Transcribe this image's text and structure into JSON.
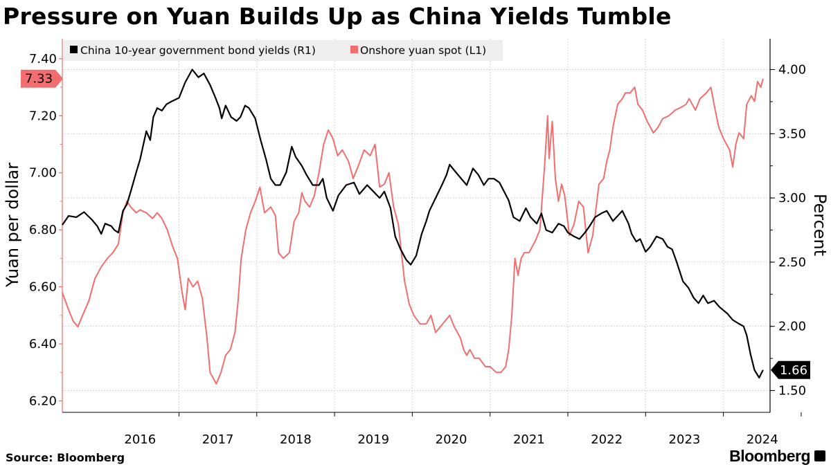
{
  "title": "Pressure on Yuan Builds Up as China Yields Tumble",
  "source": "Source:  Bloomberg",
  "brand": "Bloomberg",
  "colors": {
    "yield": "#000000",
    "yuan": "#f26d6d",
    "grid": "#c8c8c8",
    "legend_bg": "#eeeeee"
  },
  "chart_data": {
    "type": "line",
    "grid": true,
    "legend_placement": "top-left",
    "x_ticks": [
      "2016",
      "2017",
      "2018",
      "2019",
      "2020",
      "2021",
      "2022",
      "2023",
      "2024"
    ],
    "left_axis": {
      "label": "Yuan per dollar",
      "ticks": [
        "6.20",
        "6.40",
        "6.60",
        "6.80",
        "7.00",
        "7.20",
        "7.40"
      ],
      "range": [
        6.16,
        7.47
      ],
      "last_value_label": "7.33"
    },
    "right_axis": {
      "label": "Percent",
      "ticks": [
        "1.50",
        "2.00",
        "2.50",
        "3.00",
        "3.50",
        "4.00"
      ],
      "range": [
        1.33,
        4.24
      ],
      "last_value_label": "1.66"
    },
    "series": [
      {
        "name": "China 10-year government bond yields (R1)",
        "axis": "right",
        "points": [
          [
            2015.5,
            2.79
          ],
          [
            2015.58,
            2.86
          ],
          [
            2015.68,
            2.85
          ],
          [
            2015.78,
            2.89
          ],
          [
            2015.88,
            2.83
          ],
          [
            2015.95,
            2.78
          ],
          [
            2016.0,
            2.72
          ],
          [
            2016.05,
            2.8
          ],
          [
            2016.13,
            2.78
          ],
          [
            2016.17,
            2.75
          ],
          [
            2016.22,
            2.73
          ],
          [
            2016.28,
            2.9
          ],
          [
            2016.33,
            2.95
          ],
          [
            2016.38,
            3.05
          ],
          [
            2016.45,
            3.2
          ],
          [
            2016.5,
            3.3
          ],
          [
            2016.58,
            3.52
          ],
          [
            2016.63,
            3.45
          ],
          [
            2016.67,
            3.63
          ],
          [
            2016.72,
            3.7
          ],
          [
            2016.78,
            3.68
          ],
          [
            2016.84,
            3.73
          ],
          [
            2016.9,
            3.75
          ],
          [
            2017.0,
            3.78
          ],
          [
            2017.08,
            3.9
          ],
          [
            2017.17,
            4.0
          ],
          [
            2017.25,
            3.94
          ],
          [
            2017.32,
            3.97
          ],
          [
            2017.4,
            3.88
          ],
          [
            2017.47,
            3.78
          ],
          [
            2017.52,
            3.7
          ],
          [
            2017.55,
            3.62
          ],
          [
            2017.6,
            3.72
          ],
          [
            2017.67,
            3.63
          ],
          [
            2017.74,
            3.6
          ],
          [
            2017.79,
            3.63
          ],
          [
            2017.85,
            3.72
          ],
          [
            2017.9,
            3.7
          ],
          [
            2017.98,
            3.62
          ],
          [
            2018.05,
            3.45
          ],
          [
            2018.12,
            3.3
          ],
          [
            2018.18,
            3.15
          ],
          [
            2018.24,
            3.1
          ],
          [
            2018.3,
            3.1
          ],
          [
            2018.38,
            3.2
          ],
          [
            2018.45,
            3.4
          ],
          [
            2018.5,
            3.32
          ],
          [
            2018.58,
            3.25
          ],
          [
            2018.64,
            3.18
          ],
          [
            2018.72,
            3.1
          ],
          [
            2018.8,
            3.1
          ],
          [
            2018.85,
            3.15
          ],
          [
            2018.9,
            3.0
          ],
          [
            2018.98,
            2.9
          ],
          [
            2019.05,
            3.02
          ],
          [
            2019.15,
            3.1
          ],
          [
            2019.25,
            3.12
          ],
          [
            2019.32,
            3.03
          ],
          [
            2019.42,
            3.1
          ],
          [
            2019.5,
            3.05
          ],
          [
            2019.58,
            3.0
          ],
          [
            2019.64,
            3.05
          ],
          [
            2019.72,
            2.92
          ],
          [
            2019.78,
            2.7
          ],
          [
            2019.85,
            2.6
          ],
          [
            2019.92,
            2.52
          ],
          [
            2019.98,
            2.48
          ],
          [
            2020.05,
            2.55
          ],
          [
            2020.12,
            2.72
          ],
          [
            2020.18,
            2.82
          ],
          [
            2020.22,
            2.9
          ],
          [
            2020.3,
            3.0
          ],
          [
            2020.38,
            3.1
          ],
          [
            2020.44,
            3.18
          ],
          [
            2020.48,
            3.26
          ],
          [
            2020.56,
            3.2
          ],
          [
            2020.63,
            3.15
          ],
          [
            2020.7,
            3.1
          ],
          [
            2020.78,
            3.23
          ],
          [
            2020.85,
            3.18
          ],
          [
            2020.92,
            3.1
          ],
          [
            2020.98,
            3.15
          ],
          [
            2021.05,
            3.15
          ],
          [
            2021.12,
            3.12
          ],
          [
            2021.18,
            3.05
          ],
          [
            2021.24,
            2.98
          ],
          [
            2021.3,
            2.85
          ],
          [
            2021.38,
            2.82
          ],
          [
            2021.46,
            2.92
          ],
          [
            2021.52,
            2.85
          ],
          [
            2021.6,
            2.8
          ],
          [
            2021.66,
            2.88
          ],
          [
            2021.72,
            2.75
          ],
          [
            2021.8,
            2.73
          ],
          [
            2021.88,
            2.8
          ],
          [
            2021.95,
            2.78
          ],
          [
            2022.0,
            2.73
          ],
          [
            2022.08,
            2.7
          ],
          [
            2022.15,
            2.68
          ],
          [
            2022.22,
            2.73
          ],
          [
            2022.28,
            2.78
          ],
          [
            2022.35,
            2.85
          ],
          [
            2022.43,
            2.88
          ],
          [
            2022.5,
            2.9
          ],
          [
            2022.58,
            2.82
          ],
          [
            2022.64,
            2.86
          ],
          [
            2022.7,
            2.9
          ],
          [
            2022.78,
            2.8
          ],
          [
            2022.82,
            2.72
          ],
          [
            2022.88,
            2.66
          ],
          [
            2022.93,
            2.68
          ],
          [
            2023.0,
            2.58
          ],
          [
            2023.06,
            2.62
          ],
          [
            2023.14,
            2.7
          ],
          [
            2023.22,
            2.68
          ],
          [
            2023.28,
            2.62
          ],
          [
            2023.34,
            2.6
          ],
          [
            2023.4,
            2.5
          ],
          [
            2023.48,
            2.35
          ],
          [
            2023.55,
            2.3
          ],
          [
            2023.62,
            2.22
          ],
          [
            2023.68,
            2.18
          ],
          [
            2023.74,
            2.24
          ],
          [
            2023.8,
            2.18
          ],
          [
            2023.88,
            2.2
          ],
          [
            2023.95,
            2.15
          ],
          [
            2024.05,
            2.1
          ],
          [
            2024.12,
            2.05
          ],
          [
            2024.2,
            2.02
          ],
          [
            2024.26,
            2.0
          ],
          [
            2024.3,
            1.93
          ],
          [
            2024.35,
            1.78
          ],
          [
            2024.4,
            1.66
          ],
          [
            2024.46,
            1.6
          ],
          [
            2024.51,
            1.66
          ]
        ]
      },
      {
        "name": "Onshore yuan spot (L1)",
        "axis": "left",
        "points": [
          [
            2015.5,
            6.58
          ],
          [
            2015.58,
            6.52
          ],
          [
            2015.64,
            6.48
          ],
          [
            2015.7,
            6.46
          ],
          [
            2015.76,
            6.5
          ],
          [
            2015.84,
            6.55
          ],
          [
            2015.92,
            6.63
          ],
          [
            2016.0,
            6.67
          ],
          [
            2016.08,
            6.7
          ],
          [
            2016.15,
            6.72
          ],
          [
            2016.22,
            6.75
          ],
          [
            2016.28,
            6.86
          ],
          [
            2016.33,
            6.9
          ],
          [
            2016.38,
            6.88
          ],
          [
            2016.45,
            6.86
          ],
          [
            2016.5,
            6.87
          ],
          [
            2016.58,
            6.86
          ],
          [
            2016.66,
            6.84
          ],
          [
            2016.72,
            6.86
          ],
          [
            2016.78,
            6.84
          ],
          [
            2016.85,
            6.8
          ],
          [
            2016.92,
            6.74
          ],
          [
            2016.98,
            6.7
          ],
          [
            2017.04,
            6.58
          ],
          [
            2017.08,
            6.52
          ],
          [
            2017.12,
            6.63
          ],
          [
            2017.18,
            6.6
          ],
          [
            2017.24,
            6.62
          ],
          [
            2017.3,
            6.56
          ],
          [
            2017.36,
            6.42
          ],
          [
            2017.4,
            6.3
          ],
          [
            2017.44,
            6.28
          ],
          [
            2017.48,
            6.26
          ],
          [
            2017.54,
            6.3
          ],
          [
            2017.6,
            6.36
          ],
          [
            2017.66,
            6.38
          ],
          [
            2017.72,
            6.44
          ],
          [
            2017.76,
            6.55
          ],
          [
            2017.8,
            6.7
          ],
          [
            2017.86,
            6.8
          ],
          [
            2017.92,
            6.86
          ],
          [
            2017.98,
            6.9
          ],
          [
            2018.04,
            6.95
          ],
          [
            2018.1,
            6.86
          ],
          [
            2018.18,
            6.88
          ],
          [
            2018.24,
            6.85
          ],
          [
            2018.28,
            6.72
          ],
          [
            2018.34,
            6.7
          ],
          [
            2018.42,
            6.72
          ],
          [
            2018.48,
            6.83
          ],
          [
            2018.54,
            6.86
          ],
          [
            2018.58,
            6.93
          ],
          [
            2018.62,
            6.9
          ],
          [
            2018.68,
            6.88
          ],
          [
            2018.74,
            6.92
          ],
          [
            2018.8,
            7.0
          ],
          [
            2018.86,
            7.1
          ],
          [
            2018.92,
            7.15
          ],
          [
            2018.98,
            7.12
          ],
          [
            2019.04,
            7.06
          ],
          [
            2019.1,
            7.08
          ],
          [
            2019.18,
            7.04
          ],
          [
            2019.24,
            6.98
          ],
          [
            2019.3,
            7.02
          ],
          [
            2019.38,
            7.08
          ],
          [
            2019.46,
            7.06
          ],
          [
            2019.52,
            7.1
          ],
          [
            2019.58,
            6.95
          ],
          [
            2019.64,
            6.96
          ],
          [
            2019.7,
            7.0
          ],
          [
            2019.76,
            6.88
          ],
          [
            2019.82,
            6.82
          ],
          [
            2019.86,
            6.72
          ],
          [
            2019.9,
            6.62
          ],
          [
            2019.96,
            6.54
          ],
          [
            2020.02,
            6.5
          ],
          [
            2020.1,
            6.47
          ],
          [
            2020.18,
            6.47
          ],
          [
            2020.24,
            6.5
          ],
          [
            2020.3,
            6.44
          ],
          [
            2020.36,
            6.46
          ],
          [
            2020.42,
            6.48
          ],
          [
            2020.48,
            6.5
          ],
          [
            2020.54,
            6.46
          ],
          [
            2020.58,
            6.44
          ],
          [
            2020.62,
            6.42
          ],
          [
            2020.66,
            6.38
          ],
          [
            2020.7,
            6.36
          ],
          [
            2020.74,
            6.38
          ],
          [
            2020.8,
            6.35
          ],
          [
            2020.86,
            6.35
          ],
          [
            2020.94,
            6.32
          ],
          [
            2021.0,
            6.32
          ],
          [
            2021.08,
            6.3
          ],
          [
            2021.14,
            6.3
          ],
          [
            2021.2,
            6.32
          ],
          [
            2021.24,
            6.38
          ],
          [
            2021.28,
            6.5
          ],
          [
            2021.32,
            6.7
          ],
          [
            2021.36,
            6.64
          ],
          [
            2021.4,
            6.7
          ],
          [
            2021.44,
            6.72
          ],
          [
            2021.5,
            6.72
          ],
          [
            2021.58,
            6.76
          ],
          [
            2021.64,
            6.8
          ],
          [
            2021.7,
            7.02
          ],
          [
            2021.74,
            7.2
          ],
          [
            2021.76,
            7.05
          ],
          [
            2021.8,
            7.18
          ],
          [
            2021.84,
            6.98
          ],
          [
            2021.88,
            6.9
          ],
          [
            2021.92,
            6.96
          ],
          [
            2021.96,
            6.92
          ],
          [
            2022.02,
            6.78
          ],
          [
            2022.08,
            6.82
          ],
          [
            2022.14,
            6.9
          ],
          [
            2022.2,
            6.88
          ],
          [
            2022.26,
            6.72
          ],
          [
            2022.32,
            6.78
          ],
          [
            2022.4,
            6.96
          ],
          [
            2022.46,
            6.98
          ],
          [
            2022.5,
            7.04
          ],
          [
            2022.54,
            7.08
          ],
          [
            2022.58,
            7.16
          ],
          [
            2022.64,
            7.24
          ],
          [
            2022.7,
            7.26
          ],
          [
            2022.74,
            7.28
          ],
          [
            2022.8,
            7.28
          ],
          [
            2022.86,
            7.3
          ],
          [
            2022.9,
            7.24
          ],
          [
            2022.96,
            7.22
          ],
          [
            2023.02,
            7.18
          ],
          [
            2023.1,
            7.14
          ],
          [
            2023.16,
            7.16
          ],
          [
            2023.22,
            7.19
          ],
          [
            2023.3,
            7.2
          ],
          [
            2023.38,
            7.22
          ],
          [
            2023.46,
            7.23
          ],
          [
            2023.52,
            7.24
          ],
          [
            2023.56,
            7.26
          ],
          [
            2023.6,
            7.24
          ],
          [
            2023.64,
            7.22
          ],
          [
            2023.7,
            7.26
          ],
          [
            2023.78,
            7.28
          ],
          [
            2023.84,
            7.3
          ],
          [
            2023.88,
            7.24
          ],
          [
            2023.94,
            7.16
          ],
          [
            2024.0,
            7.12
          ],
          [
            2024.04,
            7.1
          ],
          [
            2024.08,
            7.08
          ],
          [
            2024.12,
            7.02
          ],
          [
            2024.16,
            7.1
          ],
          [
            2024.2,
            7.14
          ],
          [
            2024.26,
            7.12
          ],
          [
            2024.3,
            7.24
          ],
          [
            2024.36,
            7.27
          ],
          [
            2024.4,
            7.25
          ],
          [
            2024.44,
            7.32
          ],
          [
            2024.48,
            7.3
          ],
          [
            2024.51,
            7.33
          ]
        ]
      }
    ]
  }
}
